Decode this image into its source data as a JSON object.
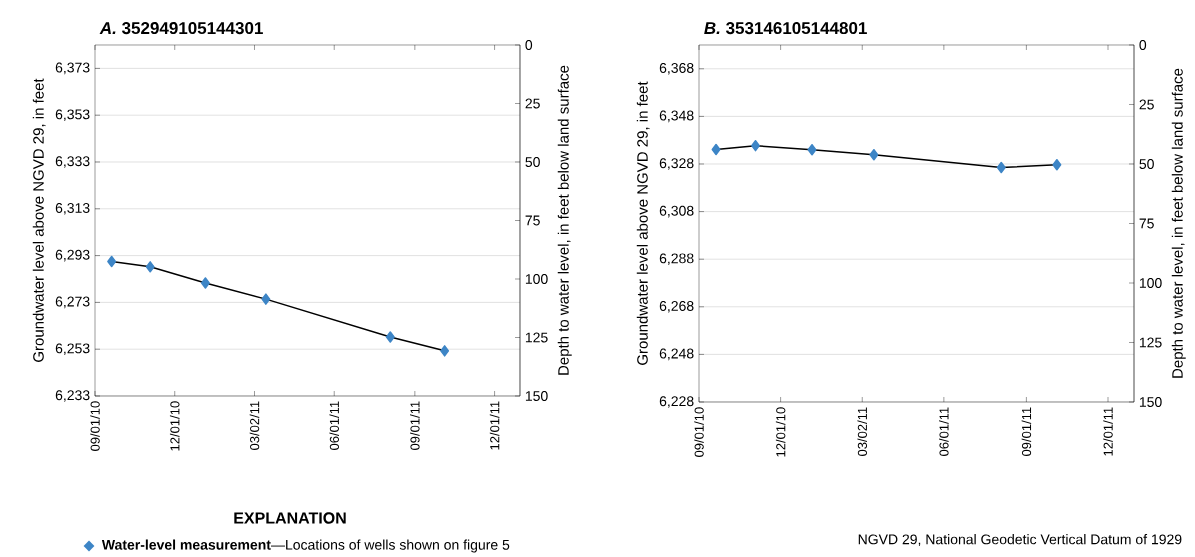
{
  "chart_data": [
    {
      "type": "line",
      "title": "*A.* 352949105144301",
      "ylabel": "Groundwater level above NGVD 29, in feet",
      "y2label": "Depth to water level, in feet below land surface",
      "legend_title": "EXPLANATION",
      "legend": "bottom",
      "marker": "diamond",
      "line_style": "solid",
      "grid": "y",
      "x": [
        "2010-09-20",
        "2010-11-03",
        "2011-01-05",
        "2011-03-15",
        "2011-08-04",
        "2011-10-05"
      ],
      "series": [
        {
          "name": "**Water-level measurement**—Locations of wells shown on figure 5",
          "color": "#3d85c6",
          "values": [
            6290.5,
            6288.2,
            6281.3,
            6274.4,
            6258.2,
            6252.3
          ]
        }
      ],
      "xlim": [
        "2010-09-01",
        "2011-12-30"
      ],
      "xticks": [
        {
          "value": "2010-09-01",
          "label": "09/01/10"
        },
        {
          "value": "2010-12-01",
          "label": "12/01/10"
        },
        {
          "value": "2011-03-02",
          "label": "03/02/11"
        },
        {
          "value": "2011-06-01",
          "label": "06/01/11"
        },
        {
          "value": "2011-09-01",
          "label": "09/01/11"
        },
        {
          "value": "2011-12-01",
          "label": "12/01/11"
        }
      ],
      "ylim": [
        6233,
        6383
      ],
      "yticks": [
        {
          "value": 6233,
          "label": "6,233"
        },
        {
          "value": 6253,
          "label": "6,253"
        },
        {
          "value": 6273,
          "label": "6,273"
        },
        {
          "value": 6293,
          "label": "6,293"
        },
        {
          "value": 6313,
          "label": "6,313"
        },
        {
          "value": 6333,
          "label": "6,333"
        },
        {
          "value": 6353,
          "label": "6,353"
        },
        {
          "value": 6373,
          "label": "6,373"
        }
      ],
      "y2lim": [
        150,
        0
      ],
      "y2ticks": [
        0,
        25,
        50,
        75,
        100,
        125,
        150
      ]
    },
    {
      "type": "line",
      "title": "*B.* 353146105144801",
      "ylabel": "Groundwater level above NGVD 29, in feet",
      "y2label": "Depth to water level, in feet below land surface",
      "marker": "diamond",
      "line_style": "solid",
      "grid": "y",
      "annotations": [
        "NGVD 29, National Geodetic Vertical Datum of 1929"
      ],
      "x": [
        "2010-09-20",
        "2010-11-03",
        "2011-01-05",
        "2011-03-15",
        "2011-08-04",
        "2011-10-05"
      ],
      "series": [
        {
          "color": "#3d85c6",
          "values": [
            6334.1,
            6335.7,
            6334.0,
            6331.9,
            6326.5,
            6327.7
          ]
        }
      ],
      "xlim": [
        "2010-09-01",
        "2011-12-30"
      ],
      "xticks": [
        {
          "value": "2010-09-01",
          "label": "09/01/10"
        },
        {
          "value": "2010-12-01",
          "label": "12/01/10"
        },
        {
          "value": "2011-03-02",
          "label": "03/02/11"
        },
        {
          "value": "2011-06-01",
          "label": "06/01/11"
        },
        {
          "value": "2011-09-01",
          "label": "09/01/11"
        },
        {
          "value": "2011-12-01",
          "label": "12/01/11"
        }
      ],
      "ylim": [
        6228,
        6378
      ],
      "yticks": [
        {
          "value": 6228,
          "label": "6,228"
        },
        {
          "value": 6248,
          "label": "6,248"
        },
        {
          "value": 6268,
          "label": "6,268"
        },
        {
          "value": 6288,
          "label": "6,288"
        },
        {
          "value": 6308,
          "label": "6,308"
        },
        {
          "value": 6328,
          "label": "6,328"
        },
        {
          "value": 6348,
          "label": "6,348"
        },
        {
          "value": 6368,
          "label": "6,368"
        }
      ],
      "y2lim": [
        150,
        0
      ],
      "y2ticks": [
        0,
        25,
        50,
        75,
        100,
        125,
        150
      ]
    }
  ]
}
